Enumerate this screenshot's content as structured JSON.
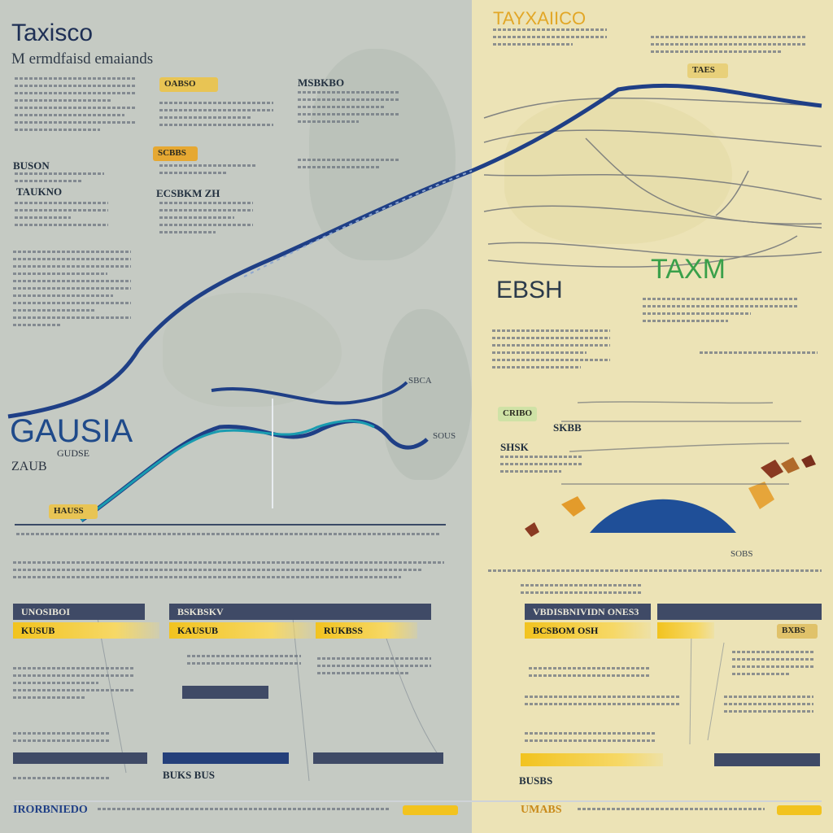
{
  "left": {
    "title": "Taxisco",
    "subtitle": "M ermdfaisd emaiands",
    "chip1": "OABSO",
    "heading1": "MSBKBO",
    "chip2": "SCBBS",
    "label1": "ECSBKM ZH",
    "label2": "BUSON",
    "label3": "TAUKNO",
    "big": "GAUSIA",
    "sub_big": "ZAUB",
    "axis_a": "SBCA",
    "axis_b": "SOUS",
    "mid_label": "GUDSE",
    "chip3": "HAUSS"
  },
  "right": {
    "title": "TAYXAIICO",
    "chip1": "TAES",
    "big": "TAXM",
    "ebsh": "EBSH",
    "chip2": "CRIBO",
    "label1": "SHSK",
    "label2": "SKBB",
    "label3": "SOBS",
    "footer": "BUSBS"
  },
  "bars": {
    "l1": "UNOSIBOI",
    "l2": "BSKBSKV",
    "l3": "KAUSUB",
    "l4": "KUSUB",
    "l5": "RUKBSS",
    "l6": "BUKS BUS",
    "r1": "VBDISBNIVIDN ONES3",
    "r2": "BCSBOM OSH",
    "r3": "BXBS"
  },
  "footer": {
    "left": "IRORBNIEDO",
    "right": "UMABS"
  },
  "colors": {
    "navy": "#1f3f86",
    "teal": "#1a9cb0",
    "yellow": "#f2c31f",
    "green": "#3aa04a"
  },
  "chart_data": {
    "type": "line",
    "title": "",
    "series": [
      {
        "values": [
          0.0,
          0.08,
          0.21,
          0.38,
          0.55,
          0.68,
          0.8,
          0.92,
          1.0
        ]
      },
      {
        "values": [
          0.2,
          0.45,
          0.62,
          0.55,
          0.48,
          0.42,
          0.38,
          0.35,
          0.34
        ]
      }
    ]
  }
}
